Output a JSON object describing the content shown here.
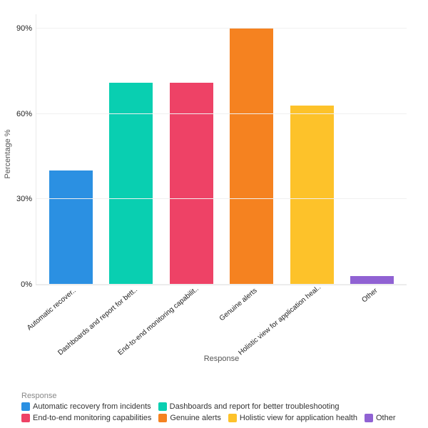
{
  "chart": {
    "type": "bar",
    "background_color": "#ffffff",
    "grid_color": "#f0f0f0",
    "axis_line_color": "#e9e9e9",
    "x_axis_title": "Response",
    "y_axis_title": "Percentage %",
    "axis_title_fontsize": 11,
    "tick_fontsize": 11,
    "ylim": [
      0,
      95
    ],
    "y_ticks": [
      {
        "value": 0,
        "label": "0%"
      },
      {
        "value": 30,
        "label": "30%"
      },
      {
        "value": 60,
        "label": "60%"
      },
      {
        "value": 90,
        "label": "90%"
      }
    ],
    "bar_width": 0.72,
    "categories": [
      {
        "short_label": "Automatic recover..",
        "full_label": "Automatic recovery from incidents",
        "value": 40,
        "color": "#2b90e2"
      },
      {
        "short_label": "Dashboards and report for bett..",
        "full_label": "Dashboards and report for better troubleshooting",
        "value": 71,
        "color": "#09cfb1"
      },
      {
        "short_label": "End-to-end monitoring capabilit..",
        "full_label": "End-to-end monitoring capabilities",
        "value": 71,
        "color": "#ee4266"
      },
      {
        "short_label": "Genuine alerts",
        "full_label": "Genuine alerts",
        "value": 90,
        "color": "#f58220"
      },
      {
        "short_label": "Holistic view for application heal..",
        "full_label": "Holistic view for application health",
        "value": 63,
        "color": "#fdc22a"
      },
      {
        "short_label": "Other",
        "full_label": "Other",
        "value": 3,
        "color": "#9062d3"
      }
    ],
    "legend": {
      "title": "Response",
      "position": "bottom-left"
    }
  }
}
